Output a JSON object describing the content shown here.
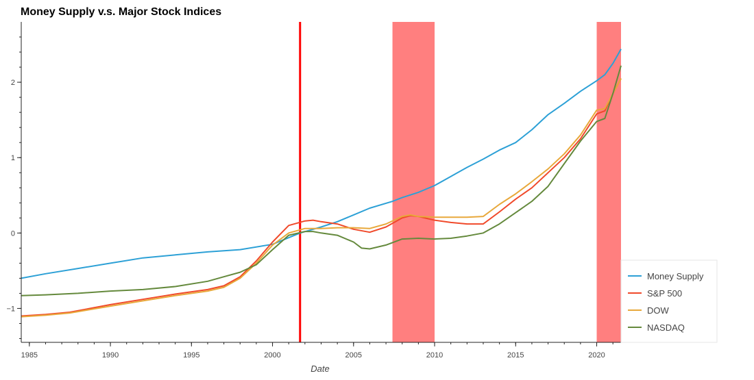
{
  "chart_data": {
    "type": "line",
    "title": "Money Supply v.s. Major Stock Indices",
    "xlabel": "Date",
    "ylabel": "",
    "xlim": [
      1984.5,
      2021.5
    ],
    "ylim": [
      -1.45,
      2.8
    ],
    "x_ticks": [
      1985,
      1990,
      1995,
      2000,
      2005,
      2010,
      2015,
      2020
    ],
    "y_ticks": [
      -1,
      0,
      1,
      2
    ],
    "y_tick_labels": [
      "−1",
      "0",
      "1",
      "2"
    ],
    "grid": false,
    "legend_position": "bottom-right",
    "vertical_line": {
      "x": 2001.7,
      "color": "#ff0000"
    },
    "shaded_regions": [
      {
        "x0": 2007.4,
        "x1": 2010.0,
        "color": "#ff0000",
        "opacity": 0.5
      },
      {
        "x0": 2020.0,
        "x1": 2021.5,
        "color": "#ff0000",
        "opacity": 0.5
      }
    ],
    "series": [
      {
        "name": "Money Supply",
        "color": "#2ca0d6",
        "x": [
          1984.5,
          1986,
          1988,
          1990,
          1992,
          1994,
          1996,
          1998,
          2000,
          2001.7,
          2003,
          2004,
          2005,
          2006,
          2007.4,
          2008,
          2009,
          2010,
          2011,
          2012,
          2013,
          2014,
          2015,
          2016,
          2017,
          2018,
          2019,
          2020,
          2020.5,
          2021,
          2021.5
        ],
        "y": [
          -0.6,
          -0.54,
          -0.47,
          -0.4,
          -0.33,
          -0.29,
          -0.25,
          -0.22,
          -0.15,
          0.0,
          0.08,
          0.15,
          0.24,
          0.33,
          0.42,
          0.47,
          0.54,
          0.63,
          0.75,
          0.87,
          0.98,
          1.1,
          1.2,
          1.37,
          1.57,
          1.72,
          1.88,
          2.02,
          2.1,
          2.25,
          2.44
        ]
      },
      {
        "name": "S&P 500",
        "color": "#f0492a",
        "x": [
          1984.5,
          1986,
          1987.5,
          1990,
          1992,
          1994,
          1996,
          1997,
          1998,
          1999,
          2000,
          2001,
          2002,
          2002.5,
          2003,
          2004,
          2005,
          2006,
          2007,
          2008,
          2008.5,
          2009,
          2010,
          2011,
          2012,
          2013,
          2014,
          2015,
          2016,
          2017,
          2018,
          2019,
          2020,
          2020.5,
          2021,
          2021.5
        ],
        "y": [
          -1.1,
          -1.08,
          -1.05,
          -0.95,
          -0.88,
          -0.81,
          -0.75,
          -0.7,
          -0.58,
          -0.37,
          -0.12,
          0.1,
          0.16,
          0.17,
          0.15,
          0.12,
          0.05,
          0.01,
          0.08,
          0.2,
          0.23,
          0.22,
          0.17,
          0.14,
          0.12,
          0.12,
          0.28,
          0.45,
          0.6,
          0.8,
          1.0,
          1.25,
          1.58,
          1.62,
          1.85,
          2.05
        ]
      },
      {
        "name": "DOW",
        "color": "#e8a83a",
        "x": [
          1984.5,
          1986,
          1987.5,
          1990,
          1992,
          1994,
          1996,
          1997,
          1998,
          1999,
          2000,
          2001,
          2002,
          2003,
          2004,
          2005,
          2006,
          2007,
          2008,
          2008.5,
          2009,
          2010,
          2011,
          2012,
          2013,
          2014,
          2015,
          2016,
          2017,
          2018,
          2019,
          2020,
          2020.5,
          2021,
          2021.5
        ],
        "y": [
          -1.11,
          -1.09,
          -1.06,
          -0.97,
          -0.9,
          -0.83,
          -0.77,
          -0.72,
          -0.6,
          -0.4,
          -0.16,
          0.0,
          0.06,
          0.06,
          0.07,
          0.07,
          0.06,
          0.12,
          0.22,
          0.24,
          0.22,
          0.21,
          0.21,
          0.21,
          0.22,
          0.38,
          0.52,
          0.68,
          0.85,
          1.05,
          1.3,
          1.63,
          1.65,
          1.85,
          2.05
        ]
      },
      {
        "name": "NASDAQ",
        "color": "#64893c",
        "x": [
          1984.5,
          1986,
          1988,
          1990,
          1992,
          1994,
          1996,
          1997,
          1998,
          1999,
          2000,
          2001,
          2002,
          2002.5,
          2003,
          2004,
          2005,
          2005.5,
          2006,
          2007,
          2008,
          2009,
          2010,
          2011,
          2012,
          2013,
          2014,
          2015,
          2016,
          2017,
          2018,
          2019,
          2020,
          2020.5,
          2021,
          2021.5
        ],
        "y": [
          -0.83,
          -0.82,
          -0.8,
          -0.77,
          -0.75,
          -0.71,
          -0.64,
          -0.58,
          -0.52,
          -0.42,
          -0.22,
          -0.03,
          0.02,
          0.02,
          0.0,
          -0.03,
          -0.12,
          -0.2,
          -0.21,
          -0.16,
          -0.08,
          -0.07,
          -0.08,
          -0.07,
          -0.04,
          0.0,
          0.12,
          0.27,
          0.42,
          0.62,
          0.92,
          1.22,
          1.48,
          1.52,
          1.85,
          2.22
        ]
      }
    ]
  }
}
